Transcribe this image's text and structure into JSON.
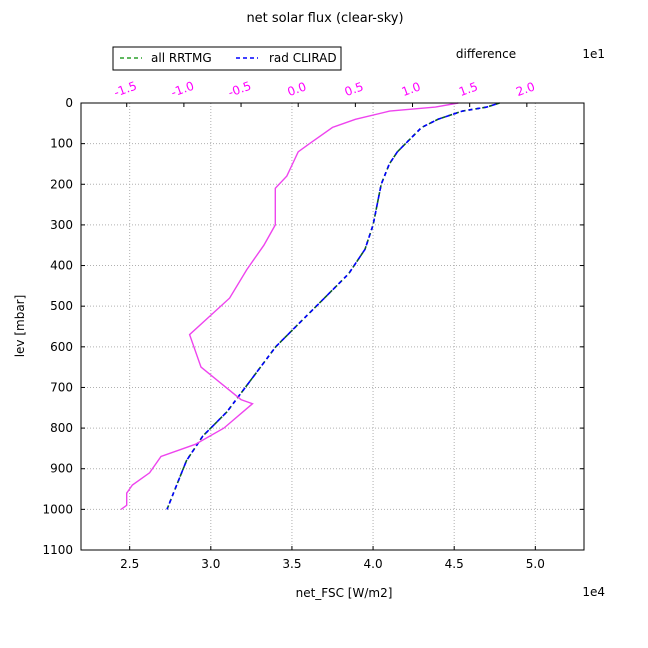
{
  "chart_data": {
    "type": "line",
    "title": "net solar flux (clear-sky)",
    "xlabel": "net_FSC [W/m2]",
    "ylabel": "lev [mbar]",
    "x_multiplier": "1e4",
    "xlim": [
      22000,
      53000
    ],
    "ylim": [
      1100,
      0
    ],
    "x_ticks": [
      25000,
      30000,
      35000,
      40000,
      45000,
      50000
    ],
    "x_tick_labels": [
      "2.5",
      "3.0",
      "3.5",
      "4.0",
      "4.5",
      "5.0"
    ],
    "y_ticks": [
      0,
      100,
      200,
      300,
      400,
      500,
      600,
      700,
      800,
      900,
      1000,
      1100
    ],
    "y_tick_labels": [
      "0",
      "100",
      "200",
      "300",
      "400",
      "500",
      "600",
      "700",
      "800",
      "900",
      "1000",
      "1100"
    ],
    "grid": true,
    "legend_position": "top-left",
    "series": [
      {
        "name": "all RRTMG",
        "color": "#2ca02c",
        "style": "dashed",
        "x": [
          47800,
          47000,
          45500,
          44000,
          43000,
          42500,
          41500,
          41000,
          40500,
          40000,
          39500,
          38500,
          37000,
          35500,
          34000,
          32500,
          31000,
          29500,
          28500,
          27800,
          27300
        ],
        "y": [
          0,
          10,
          20,
          40,
          60,
          80,
          120,
          150,
          200,
          300,
          360,
          420,
          480,
          540,
          600,
          680,
          760,
          820,
          880,
          950,
          1000
        ]
      },
      {
        "name": "rad CLIRAD",
        "color": "#0000ff",
        "style": "dashed",
        "x": [
          47800,
          47000,
          45500,
          44000,
          43000,
          42500,
          41500,
          41000,
          40500,
          40000,
          39500,
          38500,
          37000,
          35500,
          34000,
          32500,
          31000,
          29500,
          28500,
          27800,
          27300
        ],
        "y": [
          0,
          10,
          20,
          40,
          60,
          80,
          120,
          150,
          200,
          300,
          360,
          420,
          480,
          540,
          600,
          680,
          760,
          820,
          880,
          950,
          1000
        ]
      }
    ],
    "top_axis": {
      "label": "difference",
      "multiplier": "1e1",
      "color": "#ff00ff",
      "xlim": [
        -19,
        25
      ],
      "ticks": [
        -15,
        -10,
        -5,
        0,
        5,
        10,
        15,
        20
      ],
      "tick_labels": [
        "-1.5",
        "-1.0",
        "-0.5",
        "0.0",
        "0.5",
        "1.0",
        "1.5",
        "2.0"
      ],
      "series": {
        "name": "difference",
        "color": "#ee44ee",
        "x": [
          14,
          12,
          8,
          5,
          3,
          1,
          0,
          -0.5,
          -1,
          -2,
          -2,
          -3,
          -4.5,
          -6,
          -6,
          -9.5,
          -8.5,
          -5,
          -4,
          -6.5,
          -9,
          -12,
          -13,
          -14.5,
          -15,
          -15,
          -15.5
        ],
        "y": [
          0,
          10,
          20,
          40,
          60,
          100,
          120,
          150,
          180,
          210,
          300,
          350,
          410,
          480,
          480,
          570,
          650,
          730,
          740,
          800,
          840,
          870,
          910,
          940,
          960,
          990,
          1000
        ]
      }
    }
  }
}
